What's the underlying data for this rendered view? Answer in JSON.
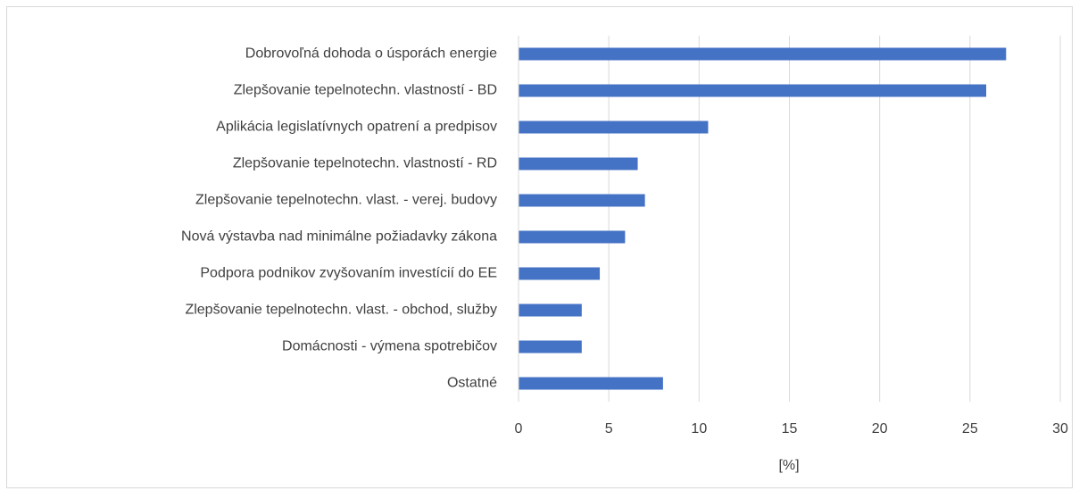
{
  "chart_data": {
    "type": "barh",
    "categories": [
      "Dobrovoľná dohoda o úsporách energie",
      "Zlepšovanie tepelnotechn. vlastností - BD",
      "Aplikácia legislatívnych opatrení a predpisov",
      "Zlepšovanie tepelnotechn. vlastností - RD",
      "Zlepšovanie tepelnotechn. vlast. - verej. budovy",
      "Nová výstavba nad minimálne požiadavky zákona",
      "Podpora podnikov zvyšovaním investícií do EE",
      "Zlepšovanie tepelnotechn. vlast. - obchod, služby",
      "Domácnosti - výmena spotrebičov",
      "Ostatné"
    ],
    "values": [
      27,
      25.9,
      10.5,
      6.6,
      7.0,
      5.9,
      4.5,
      3.5,
      3.5,
      8.0
    ],
    "color": "#4472c4",
    "x_label": "[%]",
    "xlim": [
      0,
      30
    ],
    "xticks": [
      0,
      5,
      10,
      15,
      20,
      25,
      30
    ],
    "grid": true
  }
}
